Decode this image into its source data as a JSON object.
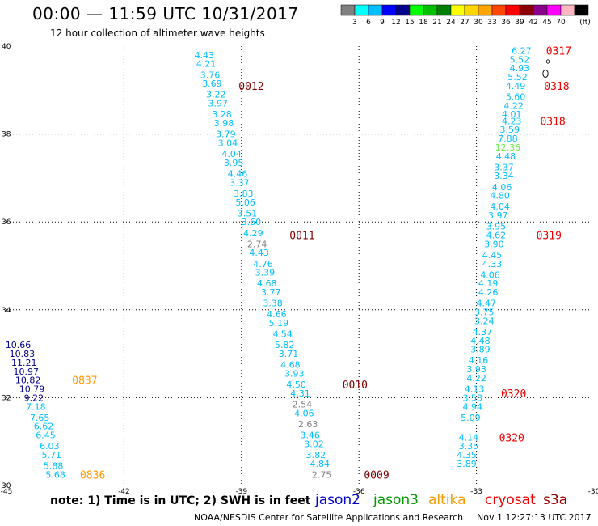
{
  "header": {
    "title": "00:00 — 11:59 UTC 10/31/2017",
    "subtitle": "12 hour collection of altimeter wave heights"
  },
  "colorbar": {
    "unit": "(ft)",
    "segments": [
      {
        "color": "#808080",
        "label": ""
      },
      {
        "color": "#00ffff",
        "label": "3"
      },
      {
        "color": "#00bfff",
        "label": "6"
      },
      {
        "color": "#0000ff",
        "label": "9"
      },
      {
        "color": "#00008b",
        "label": "12"
      },
      {
        "color": "#00ff00",
        "label": "15"
      },
      {
        "color": "#00c000",
        "label": "18"
      },
      {
        "color": "#008000",
        "label": "21"
      },
      {
        "color": "#ffff00",
        "label": "24"
      },
      {
        "color": "#ffd700",
        "label": "27"
      },
      {
        "color": "#ffa500",
        "label": "30"
      },
      {
        "color": "#ff4500",
        "label": "33"
      },
      {
        "color": "#ff0000",
        "label": "36"
      },
      {
        "color": "#8b0000",
        "label": "39"
      },
      {
        "color": "#8b008b",
        "label": "42"
      },
      {
        "color": "#ff00ff",
        "label": "45"
      },
      {
        "color": "#ffb6c1",
        "label": "70"
      },
      {
        "color": "#000000",
        "label": ""
      }
    ]
  },
  "footer": {
    "note": "note: 1) Time is in UTC; 2) SWH is in feet",
    "legend": [
      {
        "name": "jason2",
        "color": "#0000cc"
      },
      {
        "name": "jason3",
        "color": "#009900"
      },
      {
        "name": "altika",
        "color": "#ff9900"
      },
      {
        "name": "cryosat",
        "color": "#ee0000"
      },
      {
        "name": "s3a",
        "color": "#990000"
      }
    ],
    "credit": "NOAA/NESDIS Center for Satellite Applications and Research",
    "timestamp": "Nov  1 12:27:13 UTC 2017"
  },
  "chart_data": {
    "type": "scatter",
    "xlim": [
      -45,
      -30
    ],
    "ylim": [
      30,
      40
    ],
    "x_ticks": [
      "-45",
      "-42",
      "-39",
      "-36",
      "-33",
      "-30"
    ],
    "y_ticks": [
      "30",
      "32",
      "34",
      "36",
      "38",
      "40"
    ],
    "grid": true,
    "series": [
      {
        "satellite": "jason2",
        "color": "#00008b",
        "points": [
          {
            "x": -44.7,
            "y": 33.2,
            "label": "10.66"
          },
          {
            "x": -44.6,
            "y": 33.0,
            "label": "10.83"
          },
          {
            "x": -44.55,
            "y": 32.8,
            "label": "11.21"
          },
          {
            "x": -44.5,
            "y": 32.6,
            "label": "10.97"
          },
          {
            "x": -44.45,
            "y": 32.4,
            "label": "10.82"
          },
          {
            "x": -44.35,
            "y": 32.2,
            "label": "10.79"
          },
          {
            "x": -44.3,
            "y": 32.0,
            "label": "9.22"
          }
        ]
      },
      {
        "satellite": "jason2",
        "color": "#00bfff",
        "points": [
          {
            "x": -44.25,
            "y": 31.8,
            "label": "7.18"
          },
          {
            "x": -44.15,
            "y": 31.55,
            "label": "7.65"
          },
          {
            "x": -44.05,
            "y": 31.35,
            "label": "6.62"
          },
          {
            "x": -44.0,
            "y": 31.15,
            "label": "6.45"
          },
          {
            "x": -43.9,
            "y": 30.9,
            "label": "6.03"
          },
          {
            "x": -43.85,
            "y": 30.7,
            "label": "5.71"
          },
          {
            "x": -43.8,
            "y": 30.45,
            "label": "5.88"
          },
          {
            "x": -43.75,
            "y": 30.25,
            "label": "5.68"
          }
        ]
      },
      {
        "satellite": "jason2",
        "color": "#00bfff",
        "points": [
          {
            "x": -39.95,
            "y": 39.8,
            "label": "4.43"
          },
          {
            "x": -39.9,
            "y": 39.6,
            "label": "4.21"
          },
          {
            "x": -39.8,
            "y": 39.35,
            "label": "3.76"
          },
          {
            "x": -39.75,
            "y": 39.15,
            "label": "3.69"
          },
          {
            "x": -39.65,
            "y": 38.9,
            "label": "3.22"
          },
          {
            "x": -39.6,
            "y": 38.7,
            "label": "3.97"
          },
          {
            "x": -39.5,
            "y": 38.45,
            "label": "3.28"
          },
          {
            "x": -39.45,
            "y": 38.25,
            "label": "3.98"
          },
          {
            "x": -39.4,
            "y": 38.0,
            "label": "3.79"
          },
          {
            "x": -39.35,
            "y": 37.8,
            "label": "3.04"
          },
          {
            "x": -39.25,
            "y": 37.55,
            "label": "4.04"
          },
          {
            "x": -39.2,
            "y": 37.35,
            "label": "3.95"
          },
          {
            "x": -39.1,
            "y": 37.1,
            "label": "4.46"
          },
          {
            "x": -39.05,
            "y": 36.9,
            "label": "3.37"
          },
          {
            "x": -38.95,
            "y": 36.65,
            "label": "3.83"
          },
          {
            "x": -38.9,
            "y": 36.45,
            "label": "5.06"
          },
          {
            "x": -38.85,
            "y": 36.2,
            "label": "3.51"
          },
          {
            "x": -38.75,
            "y": 36.0,
            "label": "3.60"
          },
          {
            "x": -38.7,
            "y": 35.75,
            "label": "4.29"
          },
          {
            "x": -38.6,
            "y": 35.5,
            "label": "2.74",
            "color": "#808080"
          },
          {
            "x": -38.55,
            "y": 35.3,
            "label": "4.43"
          },
          {
            "x": -38.45,
            "y": 35.05,
            "label": "4.76"
          },
          {
            "x": -38.4,
            "y": 34.85,
            "label": "3.39"
          },
          {
            "x": -38.35,
            "y": 34.6,
            "label": "4.68"
          },
          {
            "x": -38.25,
            "y": 34.4,
            "label": "3.77"
          },
          {
            "x": -38.2,
            "y": 34.15,
            "label": "3.38"
          },
          {
            "x": -38.1,
            "y": 33.9,
            "label": "4.66"
          },
          {
            "x": -38.05,
            "y": 33.7,
            "label": "5.19"
          },
          {
            "x": -37.95,
            "y": 33.45,
            "label": "4.54"
          },
          {
            "x": -37.9,
            "y": 33.2,
            "label": "5.82"
          },
          {
            "x": -37.8,
            "y": 33.0,
            "label": "3.71"
          },
          {
            "x": -37.75,
            "y": 32.75,
            "label": "4.68"
          },
          {
            "x": -37.65,
            "y": 32.55,
            "label": "3.93"
          },
          {
            "x": -37.6,
            "y": 32.3,
            "label": "4.50"
          },
          {
            "x": -37.5,
            "y": 32.1,
            "label": "4.31"
          },
          {
            "x": -37.45,
            "y": 31.85,
            "label": "2.54",
            "color": "#808080"
          },
          {
            "x": -37.4,
            "y": 31.65,
            "label": "4.06"
          },
          {
            "x": -37.3,
            "y": 31.4,
            "label": "2.63",
            "color": "#808080"
          },
          {
            "x": -37.25,
            "y": 31.15,
            "label": "3.46"
          },
          {
            "x": -37.15,
            "y": 30.95,
            "label": "3.02"
          },
          {
            "x": -37.1,
            "y": 30.7,
            "label": "3.82"
          },
          {
            "x": -37.0,
            "y": 30.5,
            "label": "4.84"
          },
          {
            "x": -36.95,
            "y": 30.25,
            "label": "2.75",
            "color": "#808080"
          }
        ]
      },
      {
        "satellite": "jason2",
        "color": "#00bfff",
        "points": [
          {
            "x": -31.85,
            "y": 39.9,
            "label": "6.27"
          },
          {
            "x": -31.9,
            "y": 39.7,
            "label": "5.52"
          },
          {
            "x": -31.9,
            "y": 39.5,
            "label": "4.93"
          },
          {
            "x": -31.95,
            "y": 39.3,
            "label": "5.52"
          },
          {
            "x": -32.0,
            "y": 39.1,
            "label": "4.49"
          },
          {
            "x": -32.0,
            "y": 38.85,
            "label": "5.60"
          },
          {
            "x": -32.05,
            "y": 38.65,
            "label": "4.22"
          },
          {
            "x": -32.1,
            "y": 38.45,
            "label": "4.01"
          },
          {
            "x": -32.1,
            "y": 38.3,
            "label": "4.23"
          },
          {
            "x": -32.15,
            "y": 38.1,
            "label": "3.59"
          },
          {
            "x": -32.2,
            "y": 37.9,
            "label": "7.88"
          },
          {
            "x": -32.2,
            "y": 37.7,
            "label": "12.36",
            "color": "#66ee44"
          },
          {
            "x": -32.25,
            "y": 37.5,
            "label": "4.48"
          },
          {
            "x": -32.3,
            "y": 37.25,
            "label": "3.37"
          },
          {
            "x": -32.3,
            "y": 37.05,
            "label": "3.34"
          },
          {
            "x": -32.35,
            "y": 36.8,
            "label": "4.06"
          },
          {
            "x": -32.4,
            "y": 36.6,
            "label": "4.80"
          },
          {
            "x": -32.4,
            "y": 36.35,
            "label": "4.04"
          },
          {
            "x": -32.45,
            "y": 36.15,
            "label": "3.97"
          },
          {
            "x": -32.5,
            "y": 35.9,
            "label": "3.95"
          },
          {
            "x": -32.5,
            "y": 35.7,
            "label": "4.62"
          },
          {
            "x": -32.55,
            "y": 35.5,
            "label": "3.90"
          },
          {
            "x": -32.6,
            "y": 35.25,
            "label": "4.45"
          },
          {
            "x": -32.6,
            "y": 35.05,
            "label": "4.33"
          },
          {
            "x": -32.65,
            "y": 34.8,
            "label": "4.06"
          },
          {
            "x": -32.7,
            "y": 34.6,
            "label": "4.19"
          },
          {
            "x": -32.7,
            "y": 34.4,
            "label": "4.26"
          },
          {
            "x": -32.75,
            "y": 34.15,
            "label": "4.47"
          },
          {
            "x": -32.8,
            "y": 33.95,
            "label": "3.75"
          },
          {
            "x": -32.8,
            "y": 33.75,
            "label": "3.24"
          },
          {
            "x": -32.85,
            "y": 33.5,
            "label": "4.37"
          },
          {
            "x": -32.9,
            "y": 33.3,
            "label": "4.48"
          },
          {
            "x": -32.9,
            "y": 33.1,
            "label": "3.89"
          },
          {
            "x": -32.95,
            "y": 32.85,
            "label": "4.16"
          },
          {
            "x": -33.0,
            "y": 32.65,
            "label": "3.93"
          },
          {
            "x": -33.0,
            "y": 32.45,
            "label": "4.22"
          },
          {
            "x": -33.05,
            "y": 32.2,
            "label": "4.13"
          },
          {
            "x": -33.1,
            "y": 32.0,
            "label": "3.53"
          },
          {
            "x": -33.1,
            "y": 31.8,
            "label": "4.94"
          },
          {
            "x": -33.15,
            "y": 31.55,
            "label": "5.09"
          },
          {
            "x": -33.2,
            "y": 31.1,
            "label": "4.14"
          },
          {
            "x": -33.2,
            "y": 30.9,
            "label": "3.35"
          },
          {
            "x": -33.25,
            "y": 30.7,
            "label": "4.35"
          },
          {
            "x": -33.25,
            "y": 30.5,
            "label": "3.89"
          }
        ]
      }
    ],
    "time_annotations": [
      {
        "x": -38.75,
        "y": 39.1,
        "label": "0012",
        "color": "#800000"
      },
      {
        "x": -37.45,
        "y": 35.7,
        "label": "0011",
        "color": "#800000"
      },
      {
        "x": -36.1,
        "y": 32.3,
        "label": "0010",
        "color": "#800000"
      },
      {
        "x": -35.55,
        "y": 30.25,
        "label": "0009",
        "color": "#800000"
      },
      {
        "x": -43.0,
        "y": 32.4,
        "label": "0837",
        "color": "#ff9900"
      },
      {
        "x": -42.8,
        "y": 30.25,
        "label": "0836",
        "color": "#ff9900"
      },
      {
        "x": -30.9,
        "y": 39.9,
        "label": "0317",
        "color": "#ee0000"
      },
      {
        "x": -30.95,
        "y": 39.1,
        "label": "0318",
        "color": "#ee0000"
      },
      {
        "x": -31.05,
        "y": 38.3,
        "label": "0318",
        "color": "#ee0000"
      },
      {
        "x": -31.15,
        "y": 35.7,
        "label": "0319",
        "color": "#ee0000"
      },
      {
        "x": -32.05,
        "y": 32.1,
        "label": "0320",
        "color": "#ee0000"
      },
      {
        "x": -32.1,
        "y": 31.1,
        "label": "0320",
        "color": "#ee0000"
      }
    ]
  }
}
